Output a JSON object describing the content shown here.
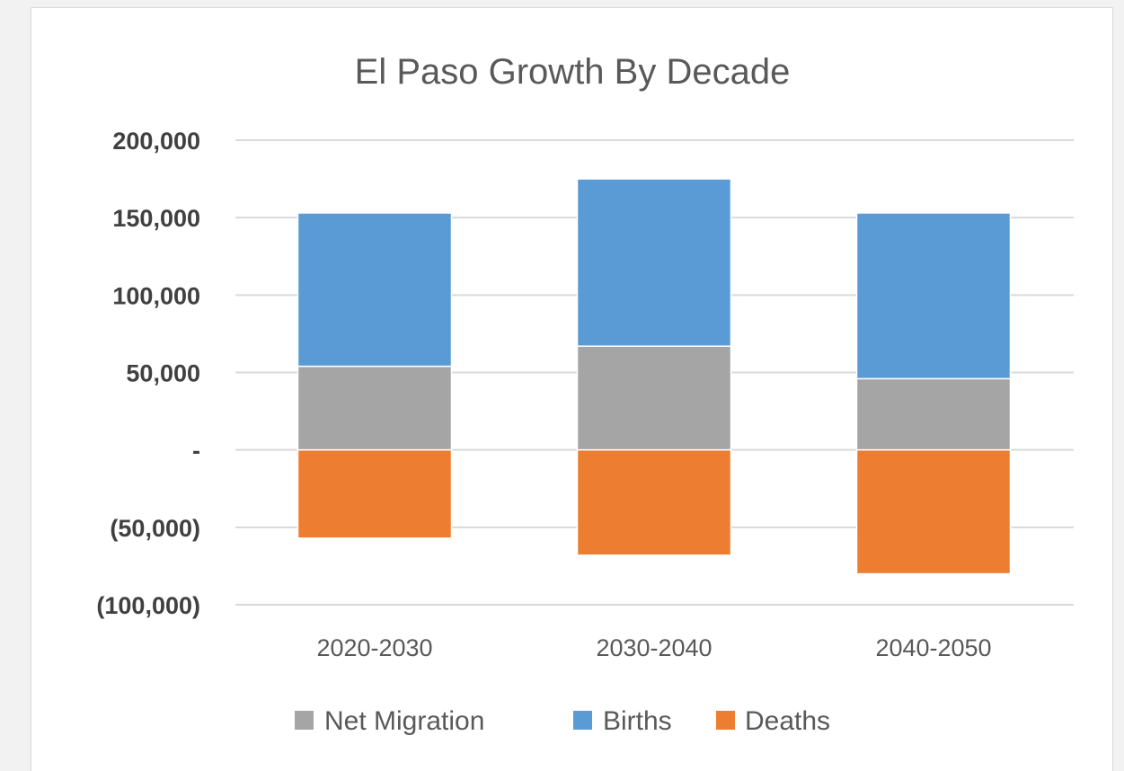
{
  "chart_data": {
    "type": "bar",
    "stacked": true,
    "title": "El Paso Growth By Decade",
    "xlabel": "",
    "ylabel": "",
    "categories": [
      "2020-2030",
      "2030-2040",
      "2040-2050"
    ],
    "series": [
      {
        "name": "Net Migration",
        "color": "#a5a5a5",
        "values": [
          54000,
          67000,
          46000
        ]
      },
      {
        "name": "Births",
        "color": "#5b9bd5",
        "values": [
          99000,
          108000,
          107000
        ]
      },
      {
        "name": "Deaths",
        "color": "#ed7d31",
        "values": [
          -57000,
          -68000,
          -80000
        ]
      }
    ],
    "ylim": [
      -100000,
      200000
    ],
    "yticks": [
      200000,
      150000,
      100000,
      50000,
      0,
      -50000,
      -100000
    ],
    "ytick_labels": [
      "200,000",
      "150,000",
      "100,000",
      "50,000",
      "-",
      "(50,000)",
      "(100,000)"
    ],
    "legend": {
      "position": "bottom",
      "order": [
        "Net Migration",
        "Births",
        "Deaths"
      ]
    },
    "grid": true
  }
}
